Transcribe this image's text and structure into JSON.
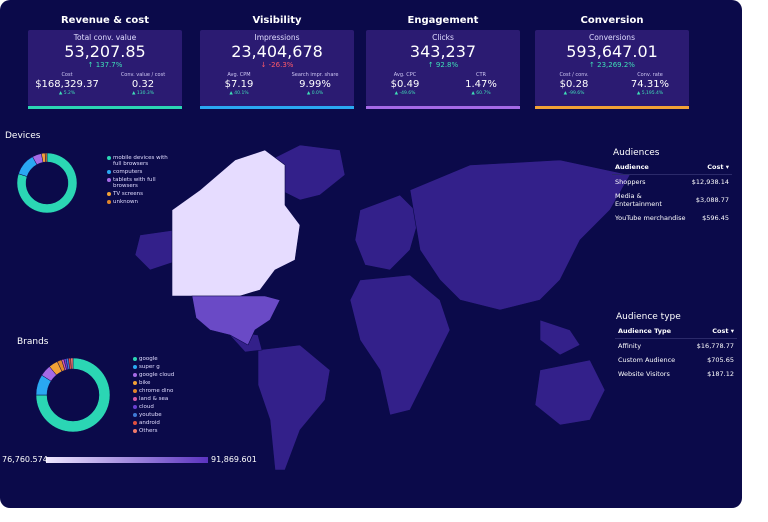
{
  "kpis": [
    {
      "title": "Revenue & cost",
      "accent": "#2bd6b4",
      "main": {
        "label": "Total conv. value",
        "value": "53,207.85",
        "change": "137.7%"
      },
      "left": {
        "label": "Cost",
        "value": "$168,329.37",
        "change": "5.2%"
      },
      "right": {
        "label": "Conv. value / cost",
        "value": "0.32",
        "change": "130.3%"
      }
    },
    {
      "title": "Visibility",
      "accent": "#2aa8f2",
      "main": {
        "label": "Impressions",
        "value": "23,404,678",
        "change": "-26.3%"
      },
      "left": {
        "label": "Avg. CPM",
        "value": "$7.19",
        "change": "40.1%"
      },
      "right": {
        "label": "Search impr. share",
        "value": "9.99%",
        "change": "0.0%"
      }
    },
    {
      "title": "Engagement",
      "accent": "#a56ae6",
      "main": {
        "label": "Clicks",
        "value": "343,237",
        "change": "92.8%"
      },
      "left": {
        "label": "Avg. CPC",
        "value": "$0.49",
        "change": "-49.6%"
      },
      "right": {
        "label": "CTR",
        "value": "1.47%",
        "change": "60.7%"
      }
    },
    {
      "title": "Conversion",
      "accent": "#f2a236",
      "main": {
        "label": "Conversions",
        "value": "593,647.01",
        "change": "23,269.2%"
      },
      "left": {
        "label": "Cost / conv.",
        "value": "$0.28",
        "change": "-99.6%"
      },
      "right": {
        "label": "Conv. rate",
        "value": "74.31%",
        "change": "5,195.4%"
      }
    }
  ],
  "devices": {
    "title": "Devices",
    "items": [
      {
        "label": "mobile devices with full browsers",
        "value": 80,
        "color": "#2bd6b4"
      },
      {
        "label": "computers",
        "value": 12,
        "color": "#2aa8f2"
      },
      {
        "label": "tablets with full browsers",
        "value": 5,
        "color": "#a56ae6"
      },
      {
        "label": "TV screens",
        "value": 2,
        "color": "#f2a236"
      },
      {
        "label": "unknown",
        "value": 1,
        "color": "#e0862a"
      }
    ]
  },
  "brands": {
    "title": "Brands",
    "items": [
      {
        "label": "google",
        "value": 75,
        "color": "#2bd6b4"
      },
      {
        "label": "super g",
        "value": 9,
        "color": "#2aa8f2"
      },
      {
        "label": "google cloud",
        "value": 5,
        "color": "#a56ae6"
      },
      {
        "label": "bike",
        "value": 4,
        "color": "#f2a236"
      },
      {
        "label": "chrome dino",
        "value": 2,
        "color": "#e0862a"
      },
      {
        "label": "land & sea",
        "value": 1,
        "color": "#d45aa8"
      },
      {
        "label": "cloud",
        "value": 1,
        "color": "#6a3fd0"
      },
      {
        "label": "youtube",
        "value": 1,
        "color": "#3f7ad6"
      },
      {
        "label": "android",
        "value": 1,
        "color": "#e0503f"
      },
      {
        "label": "Others",
        "value": 1,
        "color": "#f07a6a"
      }
    ]
  },
  "map_legend": {
    "min": "76,760.574",
    "max": "91,869.601"
  },
  "audiences": {
    "title": "Audiences",
    "columns": [
      "Audience",
      "Cost"
    ],
    "rows": [
      [
        "Shoppers",
        "$12,938.14"
      ],
      [
        "Media & Entertainment",
        "$3,088.77"
      ],
      [
        "YouTube merchandise",
        "$596.45"
      ]
    ]
  },
  "audience_type": {
    "title": "Audience type",
    "columns": [
      "Audience Type",
      "Cost"
    ],
    "rows": [
      [
        "Affinity",
        "$16,778.77"
      ],
      [
        "Custom Audience",
        "$705.65"
      ],
      [
        "Website Visitors",
        "$187.12"
      ]
    ]
  }
}
